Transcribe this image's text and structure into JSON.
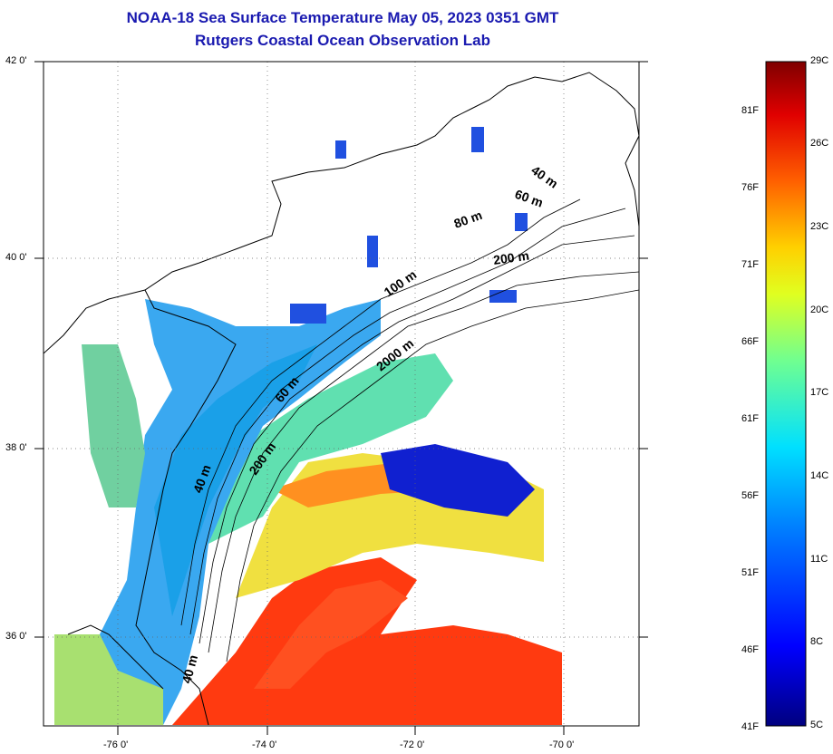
{
  "title": {
    "line1": "NOAA-18 Sea Surface Temperature May 05, 2023 0351 GMT",
    "line2": "Rutgers Coastal Ocean Observation Lab"
  },
  "map": {
    "lat_labels": [
      "42 0'",
      "40 0'",
      "38 0'",
      "36 0'"
    ],
    "lon_labels": [
      "-76 0'",
      "-74 0'",
      "-72 0'",
      "-70 0'"
    ],
    "contour_labels": [
      "40 m",
      "60 m",
      "80 m",
      "200 m",
      "100 m",
      "2000 m",
      "60 m",
      "200 m",
      "40 m",
      "40 m"
    ],
    "lat_range": [
      35.0,
      42.0
    ],
    "lon_range": [
      -77.0,
      -69.0
    ]
  },
  "colorbar": {
    "celsius_labels": [
      "29C",
      "26C",
      "23C",
      "20C",
      "17C",
      "14C",
      "11C",
      "8C",
      "5C"
    ],
    "fahrenheit_labels": [
      "81F",
      "76F",
      "71F",
      "66F",
      "61F",
      "56F",
      "51F",
      "46F",
      "41F"
    ],
    "range_c": [
      5,
      29
    ],
    "range_f": [
      41,
      84.2
    ],
    "colors": [
      "#000080",
      "#0000ff",
      "#0080ff",
      "#00ffff",
      "#80ff80",
      "#ffff00",
      "#ff8000",
      "#ff0000",
      "#800000"
    ]
  }
}
